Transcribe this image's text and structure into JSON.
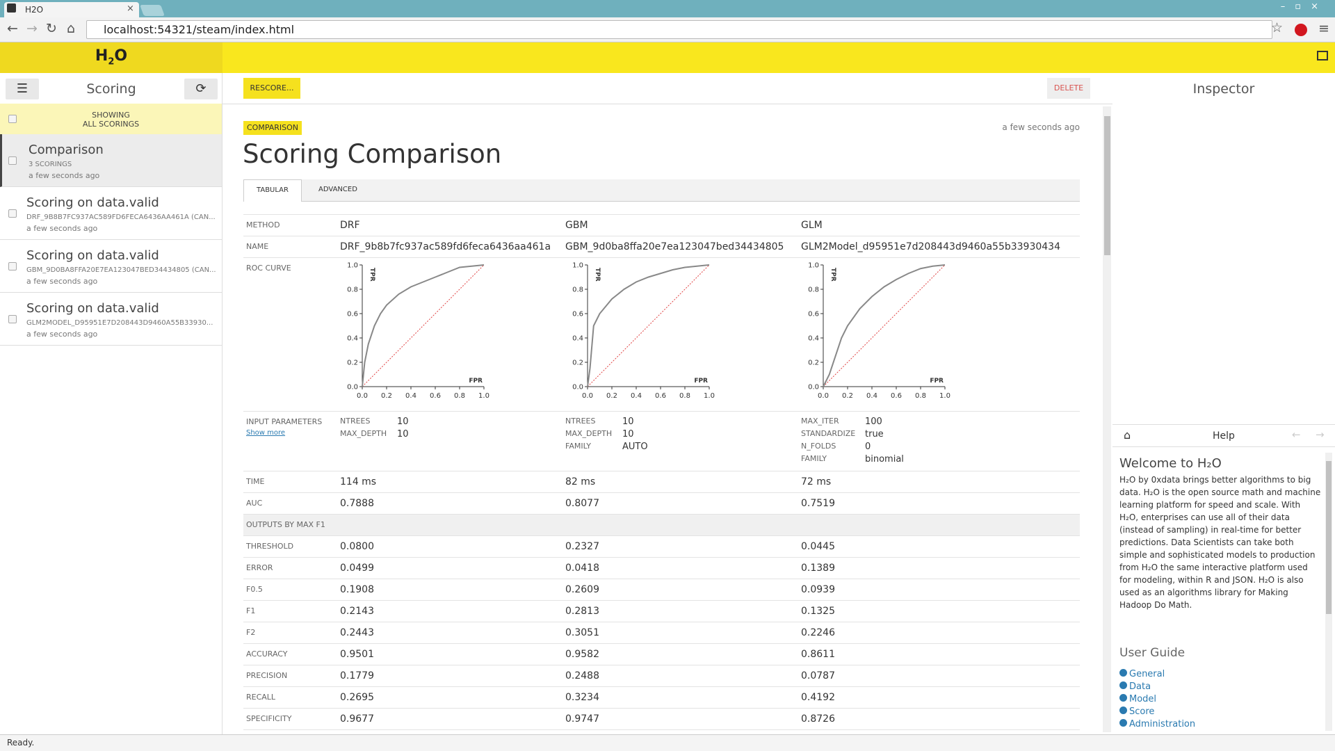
{
  "browser": {
    "tab_title": "H2O",
    "url": "localhost:54321/steam/index.html",
    "status": "Ready."
  },
  "logo": {
    "h": "H",
    "sub": "2",
    "o": "O"
  },
  "left_panel": {
    "title": "Scoring",
    "filter": [
      "SHOWING",
      "ALL SCORINGS"
    ],
    "items": [
      {
        "title": "Comparison",
        "subtitle": "3 SCORINGS",
        "time": "a few seconds ago"
      },
      {
        "title": "Scoring on data.valid",
        "subtitle": "DRF_9B8B7FC937AC589FD6FECA6436AA461A (CAN...",
        "time": "a few seconds ago"
      },
      {
        "title": "Scoring on data.valid",
        "subtitle": "GBM_9D0BA8FFA20E7EA123047BED34434805 (CAN...",
        "time": "a few seconds ago"
      },
      {
        "title": "Scoring on data.valid",
        "subtitle": "GLM2MODEL_D95951E7D208443D9460A55B33930...",
        "time": "a few seconds ago"
      }
    ]
  },
  "toolbar": {
    "rescore": "RESCORE...",
    "delete": "DELETE"
  },
  "comparison": {
    "badge": "COMPARISON",
    "timestamp": "a few seconds ago",
    "title": "Scoring Comparison",
    "tabs": [
      "TABULAR",
      "ADVANCED"
    ],
    "roc_axes": {
      "x_label": "FPR",
      "y_label": "TPR",
      "lim": [
        0,
        1
      ],
      "ticks": [
        {
          "value": 0,
          "label": "0.0"
        },
        0.2,
        0.4,
        0.6,
        0.8,
        {
          "value": 1,
          "label": "1.0"
        }
      ]
    },
    "rows": [
      {
        "label": "METHOD",
        "values": [
          "DRF",
          "GBM",
          "GLM"
        ]
      },
      {
        "label": "NAME",
        "values": [
          "DRF_9b8b7fc937ac589fd6feca6436aa461a",
          "GBM_9d0ba8ffa20e7ea123047bed34434805",
          "GLM2Model_d95951e7d208443d9460a55b33930434"
        ]
      },
      {
        "label": "ROC CURVE",
        "curves": [
          {
            "fpr": [
              0,
              0.01,
              0.02,
              0.05,
              0.1,
              0.15,
              0.2,
              0.3,
              0.4,
              0.5,
              0.6,
              0.7,
              0.8,
              0.9,
              1
            ],
            "tpr": [
              0,
              0.1,
              0.2,
              0.35,
              0.5,
              0.6,
              0.67,
              0.76,
              0.82,
              0.86,
              0.9,
              0.94,
              0.98,
              0.99,
              1
            ]
          },
          {
            "fpr": [
              0,
              0.02,
              0.05,
              0.1,
              0.15,
              0.2,
              0.3,
              0.4,
              0.5,
              0.6,
              0.7,
              0.8,
              0.9,
              1
            ],
            "tpr": [
              0,
              0.15,
              0.5,
              0.6,
              0.66,
              0.72,
              0.8,
              0.86,
              0.9,
              0.93,
              0.96,
              0.98,
              0.99,
              1
            ]
          },
          {
            "fpr": [
              0,
              0.05,
              0.1,
              0.15,
              0.2,
              0.3,
              0.4,
              0.5,
              0.6,
              0.7,
              0.8,
              0.9,
              1
            ],
            "tpr": [
              0,
              0.1,
              0.25,
              0.4,
              0.5,
              0.64,
              0.74,
              0.82,
              0.88,
              0.93,
              0.97,
              0.99,
              1
            ]
          }
        ]
      },
      {
        "label": "INPUT PARAMETERS",
        "link": "Show more",
        "params": [
          [
            {
              "name": "NTREES",
              "value": "10"
            },
            {
              "name": "MAX_DEPTH",
              "value": "10"
            }
          ],
          [
            {
              "name": "NTREES",
              "value": "10"
            },
            {
              "name": "MAX_DEPTH",
              "value": "10"
            },
            {
              "name": "FAMILY",
              "value": "AUTO"
            }
          ],
          [
            {
              "name": "MAX_ITER",
              "value": "100"
            },
            {
              "name": "STANDARDIZE",
              "value": "true"
            },
            {
              "name": "N_FOLDS",
              "value": "0"
            },
            {
              "name": "FAMILY",
              "value": "binomial"
            }
          ]
        ]
      },
      {
        "label": "TIME",
        "values": [
          "114 ms",
          "82 ms",
          "72 ms"
        ]
      },
      {
        "label": "AUC",
        "values": [
          "0.7888",
          "0.8077",
          "0.7519"
        ]
      },
      {
        "section": "OUTPUTS BY MAX F1"
      },
      {
        "label": "THRESHOLD",
        "values": [
          "0.0800",
          "0.2327",
          "0.0445"
        ]
      },
      {
        "label": "ERROR",
        "values": [
          "0.0499",
          "0.0418",
          "0.1389"
        ]
      },
      {
        "label": "F0.5",
        "values": [
          "0.1908",
          "0.2609",
          "0.0939"
        ]
      },
      {
        "label": "F1",
        "values": [
          "0.2143",
          "0.2813",
          "0.1325"
        ]
      },
      {
        "label": "F2",
        "values": [
          "0.2443",
          "0.3051",
          "0.2246"
        ]
      },
      {
        "label": "ACCURACY",
        "values": [
          "0.9501",
          "0.9582",
          "0.8611"
        ]
      },
      {
        "label": "PRECISION",
        "values": [
          "0.1779",
          "0.2488",
          "0.0787"
        ]
      },
      {
        "label": "RECALL",
        "values": [
          "0.2695",
          "0.3234",
          "0.4192"
        ]
      },
      {
        "label": "SPECIFICITY",
        "values": [
          "0.9677",
          "0.9747",
          "0.8726"
        ]
      }
    ]
  },
  "inspector": {
    "title": "Inspector",
    "help_title": "Help",
    "welcome": "Welcome to H₂O",
    "text": "H₂O by 0xdata brings better algorithms to big data. H₂O is the open source math and machine learning platform for speed and scale. With H₂O, enterprises can use all of their data (instead of sampling) in real-time for better predictions. Data Scientists can take both simple and sophisticated models to production from H₂O the same interactive platform used for modeling, within R and JSON. H₂O is also used as an algorithms library for Making Hadoop Do Math.",
    "guide_title": "User Guide",
    "links": [
      "General",
      "Data",
      "Model",
      "Score",
      "Administration"
    ]
  }
}
